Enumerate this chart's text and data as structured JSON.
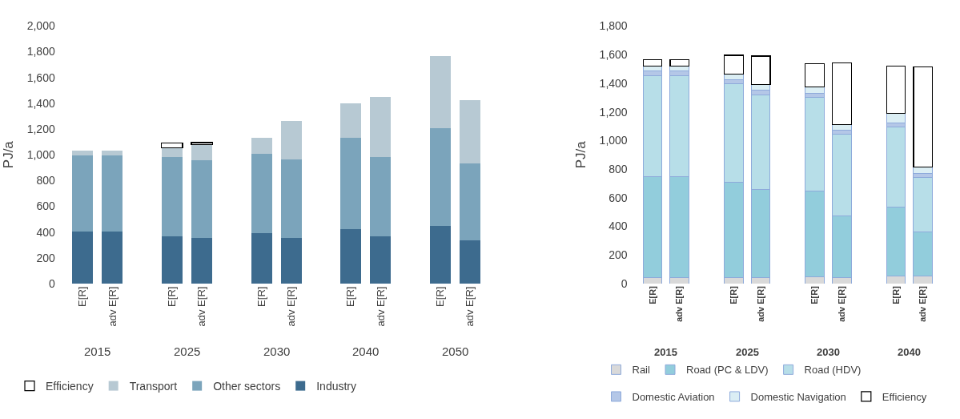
{
  "chart_data": [
    {
      "type": "bar",
      "stacked": true,
      "ylabel": "PJ/a",
      "categories": [
        "E[R]",
        "adv E[R]",
        "E[R]",
        "adv E[R]",
        "E[R]",
        "adv E[R]",
        "E[R]",
        "adv E[R]",
        "E[R]",
        "adv E[R]"
      ],
      "annotations": [
        "2015",
        "2025",
        "2030",
        "2040",
        "2050"
      ],
      "series": [
        {
          "name": "Industry",
          "color": "#3d6b8e",
          "values": [
            405,
            405,
            370,
            355,
            390,
            355,
            420,
            365,
            445,
            335
          ]
        },
        {
          "name": "Other sectors",
          "color": "#7ba4bb",
          "values": [
            590,
            590,
            615,
            605,
            620,
            610,
            710,
            620,
            760,
            595
          ]
        },
        {
          "name": "Transport",
          "color": "#b7c9d3",
          "values": [
            40,
            40,
            70,
            120,
            120,
            300,
            270,
            465,
            560,
            495
          ]
        },
        {
          "name": "Efficiency",
          "color": "#ffffff",
          "values": [
            null,
            null,
            35,
            15,
            null,
            null,
            null,
            null,
            null,
            null
          ]
        }
      ],
      "ylim": [
        0,
        2000
      ],
      "yticks": [
        0,
        {
          "value": 200,
          "label": "200"
        },
        {
          "value": 400,
          "label": "400"
        },
        {
          "value": 600,
          "label": "600"
        },
        {
          "value": 800,
          "label": "800"
        },
        {
          "value": 1000,
          "label": "1,000"
        },
        {
          "value": 1200,
          "label": "1,200"
        },
        {
          "value": 1400,
          "label": "1,400"
        },
        {
          "value": 1600,
          "label": "1,600"
        },
        {
          "value": 1800,
          "label": "1,800"
        },
        {
          "value": 2000,
          "label": "2,000"
        }
      ],
      "grid": false,
      "legend": "bottom"
    },
    {
      "type": "bar",
      "stacked": true,
      "ylabel": "PJ/a",
      "categories": [
        "E[R]",
        "adv E[R]",
        "E[R]",
        "adv E[R]",
        "E[R]",
        "adv E[R]",
        "E[R]",
        "adv E[R]"
      ],
      "annotations": [
        "2015",
        "2025",
        "2030",
        "2040"
      ],
      "series": [
        {
          "name": "Rail",
          "color": "#d9d9d9",
          "values": [
            40,
            40,
            40,
            40,
            45,
            40,
            55,
            55
          ]
        },
        {
          "name": "Road (PC & LDV)",
          "color": "#92cddc",
          "values": [
            710,
            710,
            670,
            615,
            600,
            435,
            480,
            305
          ]
        },
        {
          "name": "Road (HDV)",
          "color": "#b7dee8",
          "values": [
            705,
            705,
            685,
            665,
            655,
            570,
            560,
            380
          ]
        },
        {
          "name": "Domestic Aviation",
          "color": "#b4c7e7",
          "values": [
            30,
            30,
            30,
            30,
            30,
            25,
            30,
            30
          ]
        },
        {
          "name": "Domestic Navigation",
          "color": "#dbeef4",
          "values": [
            35,
            35,
            40,
            40,
            45,
            40,
            65,
            45
          ]
        },
        {
          "name": "Efficiency",
          "color": "#ffffff",
          "values": [
            45,
            45,
            130,
            200,
            160,
            430,
            330,
            700
          ]
        }
      ],
      "ylim": [
        0,
        1800
      ],
      "yticks": [
        0,
        {
          "value": 200,
          "label": "200"
        },
        {
          "value": 400,
          "label": "400"
        },
        {
          "value": 600,
          "label": "600"
        },
        {
          "value": 800,
          "label": "800"
        },
        {
          "value": 1000,
          "label": "1,000"
        },
        {
          "value": 1200,
          "label": "1,200"
        },
        {
          "value": 1400,
          "label": "1,400"
        },
        {
          "value": 1600,
          "label": "1,600"
        },
        {
          "value": 1800,
          "label": "1,800"
        }
      ],
      "grid": false,
      "legend": "bottom"
    }
  ]
}
